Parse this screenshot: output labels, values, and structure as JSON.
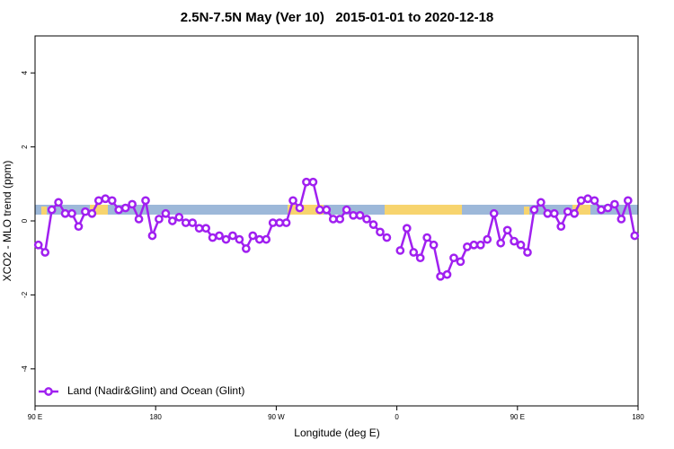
{
  "chart_data": {
    "type": "line",
    "title": "2.5N-7.5N May (Ver 10)   2015-01-01 to 2020-12-18",
    "xlabel": "Longitude (deg E)",
    "ylabel": "XCO2 - MLO trend (ppm)",
    "x": [
      92.5,
      97.5,
      102.5,
      107.5,
      112.5,
      117.5,
      122.5,
      127.5,
      132.5,
      137.5,
      142.5,
      147.5,
      152.5,
      157.5,
      162.5,
      167.5,
      172.5,
      177.5,
      182.5,
      187.5,
      192.5,
      197.5,
      202.5,
      207.5,
      212.5,
      217.5,
      222.5,
      227.5,
      232.5,
      237.5,
      242.5,
      247.5,
      252.5,
      257.5,
      262.5,
      267.5,
      272.5,
      277.5,
      282.5,
      287.5,
      292.5,
      297.5,
      302.5,
      307.5,
      312.5,
      317.5,
      322.5,
      327.5,
      332.5,
      337.5,
      342.5,
      347.5,
      352.5,
      357.5,
      362.5,
      367.5,
      372.5,
      377.5,
      382.5,
      387.5,
      392.5,
      397.5,
      402.5,
      407.5,
      412.5,
      417.5,
      422.5,
      427.5,
      432.5,
      437.5,
      442.5,
      447.5,
      452.5,
      457.5,
      462.5,
      467.5,
      472.5,
      477.5,
      482.5,
      487.5,
      492.5,
      497.5,
      502.5,
      507.5,
      512.5,
      517.5,
      522.5,
      527.5,
      532.5,
      537.5
    ],
    "series": [
      {
        "name": "Land (Nadir&Glint) and Ocean (Glint)",
        "color": "#a020f0",
        "values": [
          -0.65,
          -0.85,
          0.3,
          0.5,
          0.2,
          0.2,
          -0.15,
          0.25,
          0.2,
          0.55,
          0.6,
          0.55,
          0.3,
          0.35,
          0.45,
          0.05,
          0.55,
          -0.4,
          0.05,
          0.2,
          0,
          0.1,
          -0.05,
          -0.05,
          -0.2,
          -0.2,
          -0.45,
          -0.4,
          -0.5,
          -0.4,
          -0.5,
          -0.75,
          -0.4,
          -0.5,
          -0.5,
          -0.05,
          -0.05,
          -0.05,
          0.55,
          0.35,
          1.05,
          1.05,
          0.3,
          0.3,
          0.05,
          0.05,
          0.3,
          0.15,
          0.15,
          0.05,
          -0.1,
          -0.3,
          -0.45,
          null,
          -0.8,
          -0.2,
          -0.85,
          -1.0,
          -0.45,
          -0.65,
          -1.5,
          -1.45,
          -1.0,
          -1.1,
          -0.7,
          -0.65,
          -0.65,
          -0.5,
          0.2,
          -0.6,
          -0.25,
          -0.55,
          -0.65,
          -0.85,
          0.3,
          0.5,
          0.2,
          0.2,
          -0.15,
          0.25,
          0.2,
          0.55,
          0.6,
          0.55,
          0.3,
          0.35,
          0.45,
          0.05,
          0.55,
          -0.4
        ]
      }
    ],
    "xlim": [
      90,
      540
    ],
    "xticks": [
      {
        "value": 90,
        "label": "90 E"
      },
      {
        "value": 180,
        "label": "180"
      },
      {
        "value": 270,
        "label": "90 W"
      },
      {
        "value": 360,
        "label": "0"
      },
      {
        "value": 450,
        "label": "90 E"
      },
      {
        "value": 540,
        "label": "180"
      }
    ],
    "ylim": [
      -5,
      5
    ],
    "yticks": [
      -4,
      -2,
      0,
      2,
      4
    ],
    "legend": "lower left",
    "grid": false
  }
}
